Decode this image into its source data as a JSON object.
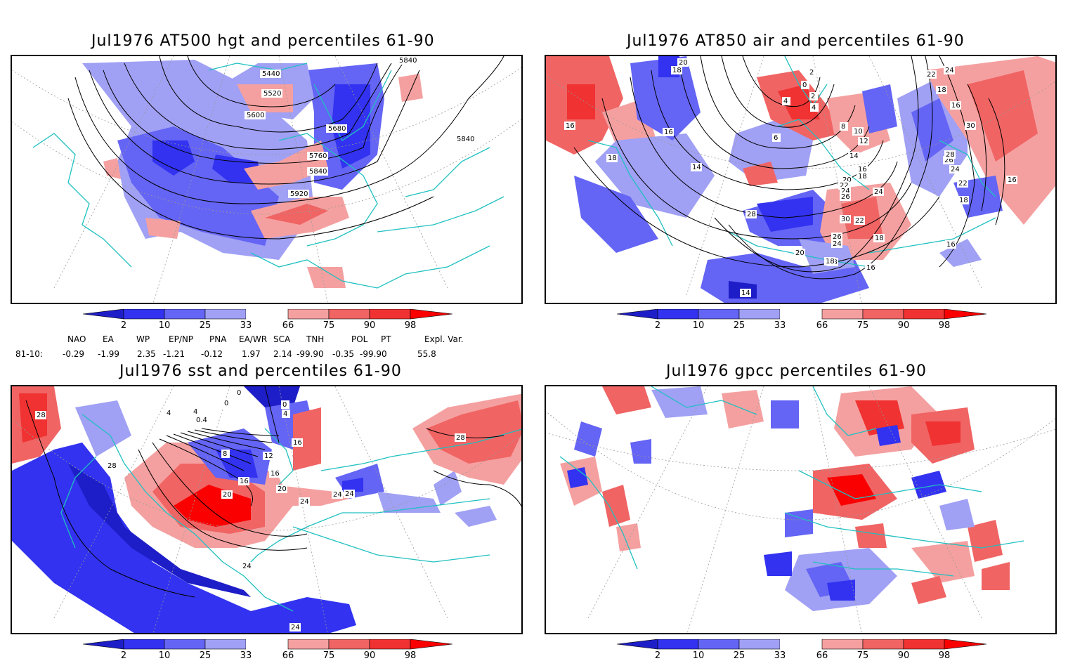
{
  "panels": [
    {
      "title": "Jul1976 AT500 hgt and percentiles 61-90",
      "contour_labels": [
        "5440",
        "5520",
        "5600",
        "5680",
        "5760",
        "5840",
        "5840",
        "5840",
        "5920"
      ]
    },
    {
      "title": "Jul1976 AT850 air and percentiles 61-90",
      "contour_labels": [
        "20",
        "18",
        "16",
        "16",
        "18",
        "2",
        "0",
        "2",
        "4",
        "4",
        "6",
        "8",
        "10",
        "12",
        "14",
        "14",
        "16",
        "18",
        "20",
        "22",
        "24",
        "26",
        "28",
        "18",
        "16",
        "18",
        "16",
        "16",
        "14",
        "18",
        "22",
        "24",
        "22",
        "24",
        "30",
        "26",
        "28",
        "24",
        "22",
        "16",
        "18",
        "30",
        "26",
        "24",
        "20",
        "18"
      ]
    },
    {
      "title": "Jul1976 sst and percentiles 61-90",
      "contour_labels": [
        "28",
        "0",
        "0",
        "0",
        "4",
        "4",
        "0.4",
        "4",
        "8",
        "12",
        "16",
        "16",
        "16",
        "20",
        "24",
        "24",
        "28",
        "28",
        "20",
        "24",
        "24",
        "24"
      ]
    },
    {
      "title": "Jul1976 gpcc percentiles 61-90",
      "contour_labels": []
    }
  ],
  "colorbar": {
    "labels": [
      "2",
      "10",
      "25",
      "33",
      "66",
      "75",
      "90",
      "98"
    ],
    "colors": {
      "below_2": "#1e1ec8",
      "p2_10": "#3232f0",
      "p10_25": "#6464f5",
      "p25_33": "#a0a0f5",
      "p33_66": "#ffffff",
      "p66_75": "#f5a0a0",
      "p75_90": "#f06464",
      "p90_98": "#f03232",
      "above_98": "#fa0000"
    }
  },
  "indices": {
    "header": [
      "NAO",
      "EA",
      "WP",
      "EP/NP",
      "PNA",
      "EA/WR",
      "SCA",
      "TNH",
      "POL",
      "PT",
      "Expl. Var."
    ],
    "row_label": "81-10:",
    "values": [
      "-0.29",
      "-1.99",
      "2.35",
      "-1.21",
      "-0.12",
      "1.97",
      "2.14",
      "-99.90",
      "-0.35",
      "-99.90",
      "55.8"
    ]
  },
  "colors": {
    "coast": "#20c0c0",
    "grid": "#9a9a9a",
    "contour": "#000000"
  }
}
